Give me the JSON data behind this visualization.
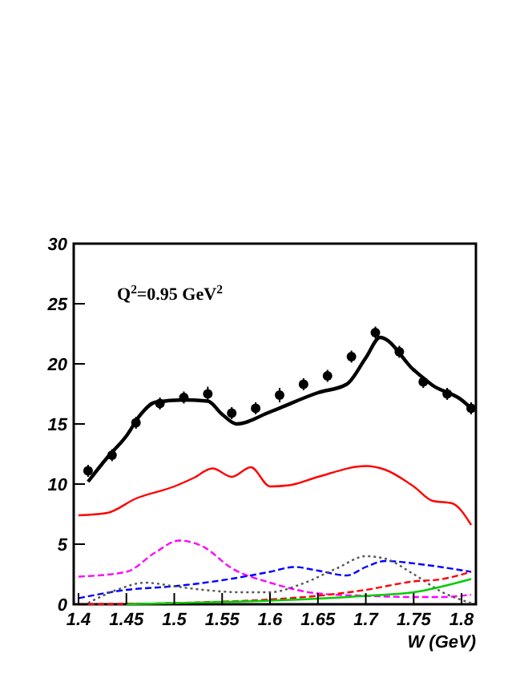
{
  "chart_data": {
    "type": "line",
    "xlabel": "W (GeV)",
    "annotations": [
      "Q$^{2}$=0.95 GeV$^{2}$"
    ],
    "xlim": [
      1.395,
      1.815
    ],
    "ylim": [
      0,
      30
    ],
    "xticks": [
      1.4,
      1.45,
      1.5,
      1.55,
      1.6,
      1.65,
      1.7,
      1.75,
      1.8
    ],
    "yticks": [
      0,
      5,
      10,
      15,
      20,
      25,
      30
    ],
    "grid": false,
    "series": [
      {
        "type": "scatter",
        "marker": "circle",
        "color": "#000000",
        "x": [
          1.41,
          1.435,
          1.46,
          1.485,
          1.51,
          1.535,
          1.56,
          1.585,
          1.61,
          1.635,
          1.66,
          1.685,
          1.71,
          1.735,
          1.76,
          1.785,
          1.81
        ],
        "values": [
          11.1,
          12.4,
          15.1,
          16.7,
          17.2,
          17.5,
          15.9,
          16.3,
          17.4,
          18.3,
          19.0,
          20.6,
          22.6,
          21.0,
          18.5,
          17.5,
          16.3
        ],
        "errors": [
          0.5,
          0.5,
          0.5,
          0.5,
          0.5,
          0.6,
          0.5,
          0.5,
          0.6,
          0.5,
          0.5,
          0.5,
          0.5,
          0.5,
          0.5,
          0.5,
          0.5
        ]
      },
      {
        "line_style": "solid",
        "color": "#000000",
        "x": [
          1.41,
          1.43,
          1.45,
          1.465,
          1.48,
          1.51,
          1.535,
          1.55,
          1.565,
          1.6,
          1.65,
          1.68,
          1.7,
          1.715,
          1.75,
          1.77,
          1.8,
          1.81
        ],
        "values": [
          10.2,
          12.2,
          14.0,
          15.8,
          16.8,
          17.0,
          16.9,
          15.8,
          15.0,
          16.0,
          17.6,
          18.3,
          20.5,
          22.2,
          19.5,
          18.2,
          17.0,
          16.3
        ]
      },
      {
        "line_style": "solid",
        "color": "#ff0000",
        "x": [
          1.4,
          1.43,
          1.46,
          1.5,
          1.52,
          1.54,
          1.56,
          1.58,
          1.6,
          1.62,
          1.65,
          1.7,
          1.72,
          1.75,
          1.77,
          1.79,
          1.81
        ],
        "values": [
          7.4,
          7.6,
          8.8,
          9.8,
          10.5,
          11.3,
          10.6,
          11.4,
          9.8,
          9.9,
          10.6,
          11.5,
          11.2,
          9.8,
          8.6,
          8.4,
          6.6
        ]
      },
      {
        "line_style": "dashed",
        "color": "#ff00ff",
        "x": [
          1.4,
          1.45,
          1.48,
          1.505,
          1.53,
          1.56,
          1.6,
          1.65,
          1.7,
          1.75,
          1.78,
          1.81
        ],
        "values": [
          2.3,
          2.7,
          4.3,
          5.3,
          4.8,
          3.0,
          1.8,
          0.9,
          0.7,
          0.6,
          0.6,
          0.8
        ]
      },
      {
        "line_style": "dashed",
        "color": "#0000ff",
        "x": [
          1.4,
          1.45,
          1.5,
          1.55,
          1.6,
          1.625,
          1.65,
          1.68,
          1.7,
          1.72,
          1.76,
          1.81
        ],
        "values": [
          0.5,
          1.2,
          1.5,
          2.0,
          2.7,
          3.1,
          2.8,
          2.4,
          3.1,
          3.6,
          3.3,
          2.7
        ]
      },
      {
        "line_style": "dotted",
        "color": "#555555",
        "x": [
          1.41,
          1.44,
          1.47,
          1.5,
          1.53,
          1.57,
          1.6,
          1.63,
          1.67,
          1.7,
          1.72,
          1.75,
          1.78,
          1.81
        ],
        "values": [
          0.1,
          1.2,
          1.8,
          1.5,
          1.2,
          1.0,
          1.0,
          1.6,
          3.0,
          4.0,
          3.8,
          2.5,
          1.0,
          0.1
        ]
      },
      {
        "line_style": "dashed",
        "color": "#ff0000",
        "x": [
          1.4,
          1.5,
          1.6,
          1.65,
          1.7,
          1.75,
          1.78,
          1.81
        ],
        "values": [
          0.0,
          0.1,
          0.4,
          0.7,
          1.2,
          1.9,
          2.1,
          2.7
        ]
      },
      {
        "line_style": "solid",
        "color": "#00cc00",
        "x": [
          1.45,
          1.5,
          1.6,
          1.7,
          1.75,
          1.81
        ],
        "values": [
          0.0,
          0.1,
          0.3,
          0.7,
          1.0,
          2.1
        ]
      }
    ]
  }
}
